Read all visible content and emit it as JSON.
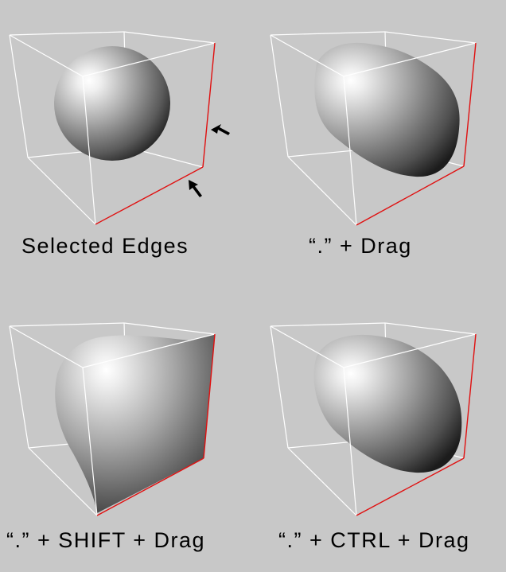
{
  "colors": {
    "background": "#c8c8c8",
    "cage_edge": "#ffffff",
    "selected_edge": "#e01010",
    "arrow": "#000000",
    "caption_text": "#000000",
    "shape_highlight": "#ffffff",
    "shape_shadow": "#1e1e1e"
  },
  "panels": [
    {
      "id": "selected-edges",
      "caption": "Selected Edges",
      "shape": "sphere",
      "arrows": true
    },
    {
      "id": "dot-drag",
      "caption": "“.” + Drag",
      "shape": "capsule",
      "arrows": false
    },
    {
      "id": "dot-shift-drag",
      "caption": "“.” + SHIFT + Drag",
      "shape": "pinched",
      "arrows": false
    },
    {
      "id": "dot-ctrl-drag",
      "caption": "“.” + CTRL + Drag",
      "shape": "rounded",
      "arrows": false
    }
  ]
}
